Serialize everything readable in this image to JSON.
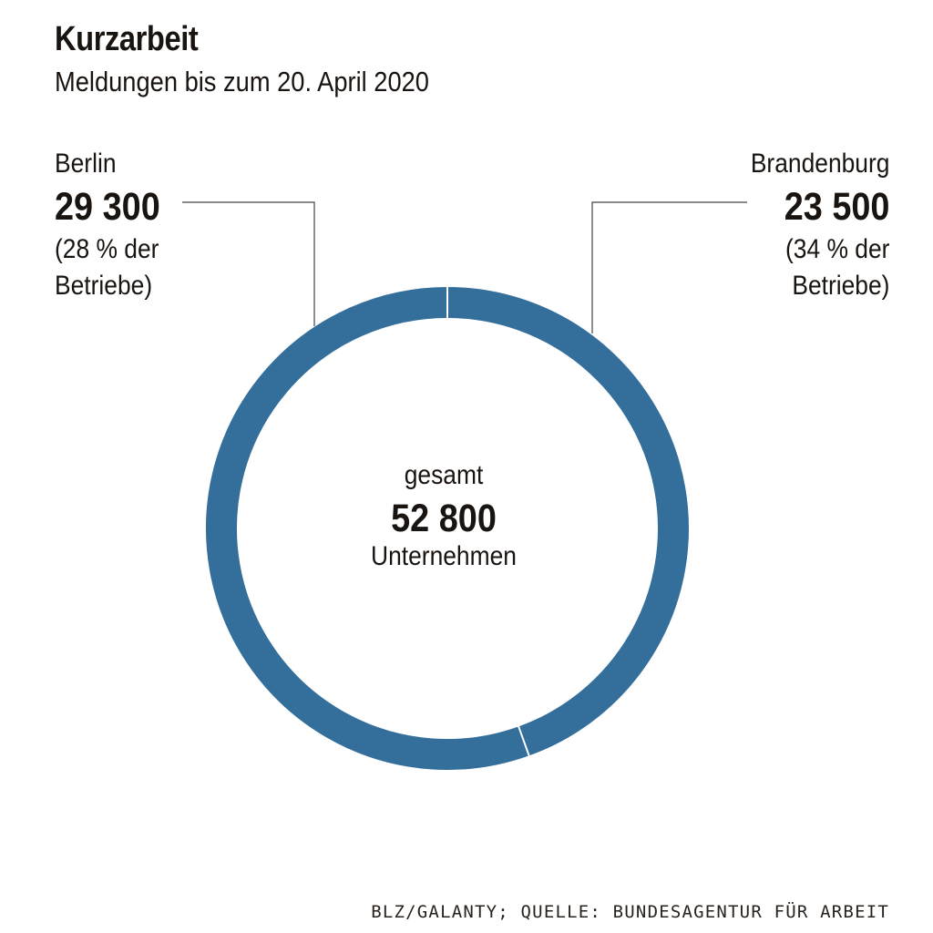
{
  "header": {
    "title": "Kurzarbeit",
    "subtitle": "Meldungen bis zum 20. April 2020"
  },
  "labels": {
    "berlin": {
      "name": "Berlin",
      "value": "29 300",
      "share_line1": "(28 % der",
      "share_line2": "Betriebe)"
    },
    "brandenburg": {
      "name": "Brandenburg",
      "value": "23 500",
      "share_line1": "(34 % der",
      "share_line2": "Betriebe)"
    }
  },
  "center": {
    "top": "gesamt",
    "value": "52 800",
    "unit": "Unternehmen"
  },
  "source": "BLZ/GALANTY; QUELLE: BUNDESAGENTUR FÜR ARBEIT",
  "colors": {
    "ring": "#346f9b",
    "separator": "#ffffff",
    "leader": "#444444"
  },
  "chart_data": {
    "type": "pie",
    "style": "donut",
    "title": "Kurzarbeit",
    "subtitle": "Meldungen bis zum 20. April 2020",
    "categories": [
      "Berlin",
      "Brandenburg"
    ],
    "values": [
      29300,
      23500
    ],
    "total": 52800,
    "total_label": "gesamt",
    "total_unit": "Unternehmen",
    "annotations": [
      "(28 % der Betriebe)",
      "(34 % der Betriebe)"
    ]
  }
}
